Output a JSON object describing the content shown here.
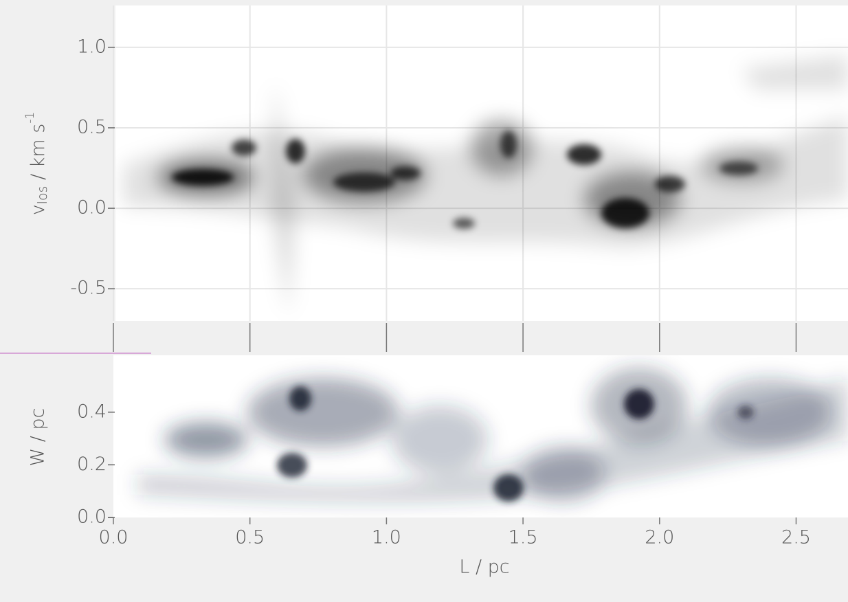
{
  "chart_data": [
    {
      "type": "image",
      "ylabel": {
        "base": "v",
        "sub": "los",
        "rest": " / km s",
        "sup": "-1"
      },
      "xlim": [
        0,
        2.69
      ],
      "ylim": [
        -0.7,
        1.26
      ],
      "xticks": [
        0.0,
        0.5,
        1.0,
        1.5,
        2.0,
        2.5
      ],
      "yticks": [
        {
          "value": 1.0,
          "label": "1.0"
        },
        {
          "value": 0.5,
          "label": "0.5"
        },
        {
          "value": 0.0,
          "label": "0.0"
        },
        {
          "value": -0.5,
          "label": "-0.5"
        }
      ],
      "grid": true,
      "color": "#000000"
    },
    {
      "type": "image",
      "ylabel": "W / pc",
      "xlabel": "L / pc",
      "xlim": [
        0,
        2.69
      ],
      "ylim": [
        0,
        0.616
      ],
      "xticks": [
        {
          "value": 0.0,
          "label": "0.0"
        },
        {
          "value": 0.5,
          "label": "0.5"
        },
        {
          "value": 1.0,
          "label": "1.0"
        },
        {
          "value": 1.5,
          "label": "1.5"
        },
        {
          "value": 2.0,
          "label": "2.0"
        },
        {
          "value": 2.5,
          "label": "2.5"
        }
      ],
      "yticks": [
        {
          "value": 0.0,
          "label": "0.0"
        },
        {
          "value": 0.2,
          "label": "0.2"
        },
        {
          "value": 0.4,
          "label": "0.4"
        }
      ],
      "grid": false,
      "color": "#26304a"
    }
  ]
}
